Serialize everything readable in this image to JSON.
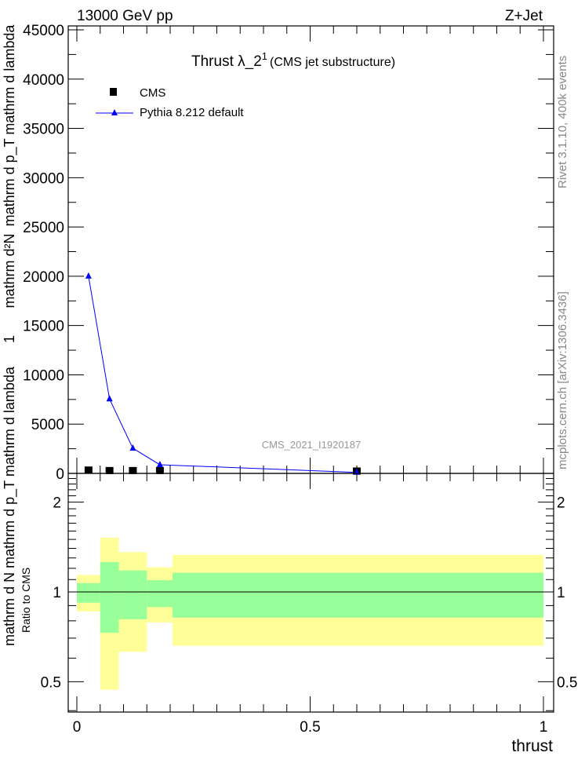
{
  "header": {
    "left": "13000 GeV pp",
    "right": "Z+Jet"
  },
  "side": {
    "rivet": "Rivet 3.1.10,  400k events",
    "mcplots": "mcplots.cern.ch [arXiv:1306.3436]"
  },
  "chart_data": [
    {
      "type": "line",
      "title": "Thrust λ_2",
      "title_sup": "1",
      "subtitle": "(CMS jet substructure)",
      "watermark": "CMS_2021_I1920187",
      "ylabel_lines": [
        "mathrm d²N",
        "1",
        "mathrm d N mathrm d p_T mathrm d lambda",
        "mathrm d p_T mathrm d lambda"
      ],
      "ylim": [
        0,
        45000
      ],
      "xlim": [
        -0.018,
        1.02
      ],
      "yticks": [
        0,
        5000,
        10000,
        15000,
        20000,
        25000,
        30000,
        35000,
        40000,
        45000
      ],
      "ytick_labels": [
        "0",
        "5000",
        "10000",
        "15000",
        "20000",
        "25000",
        "30000",
        "35000",
        "40000",
        "45000"
      ],
      "legend": {
        "placement": "top-left",
        "entries": [
          "CMS",
          "Pythia 8.212 default"
        ]
      },
      "series": [
        {
          "name": "CMS",
          "marker": "square",
          "color": "#000000",
          "x": [
            0.025,
            0.07,
            0.12,
            0.178,
            0.6
          ],
          "y": [
            300,
            250,
            250,
            250,
            200
          ]
        },
        {
          "name": "Pythia 8.212 default",
          "marker": "triangle",
          "color": "#0000ff",
          "x": [
            0.025,
            0.07,
            0.12,
            0.178,
            0.6
          ],
          "y": [
            20000,
            7550,
            2550,
            880,
            100
          ]
        }
      ]
    },
    {
      "type": "area",
      "ylabel": "Ratio to CMS",
      "xlabel": "thrust",
      "yscale": "log",
      "ylim": [
        0.4,
        2.5
      ],
      "yticks": [
        0.5,
        1,
        2
      ],
      "ytick_labels": [
        "0.5",
        "1",
        "2"
      ],
      "xticks": [
        0,
        0.5,
        1
      ],
      "xtick_labels": [
        "0",
        "0.5",
        "1"
      ],
      "bin_edges": [
        0,
        0.05,
        0.09,
        0.15,
        0.205,
        1
      ],
      "bands": [
        {
          "name": "total uncertainty",
          "color": "#ffff99",
          "low": [
            0.86,
            0.47,
            0.63,
            0.79,
            0.66
          ],
          "high": [
            1.14,
            1.52,
            1.36,
            1.21,
            1.33
          ]
        },
        {
          "name": "stat uncertainty",
          "color": "#99ff99",
          "low": [
            0.92,
            0.73,
            0.81,
            0.89,
            0.82
          ],
          "high": [
            1.07,
            1.26,
            1.18,
            1.095,
            1.16
          ]
        }
      ]
    }
  ]
}
